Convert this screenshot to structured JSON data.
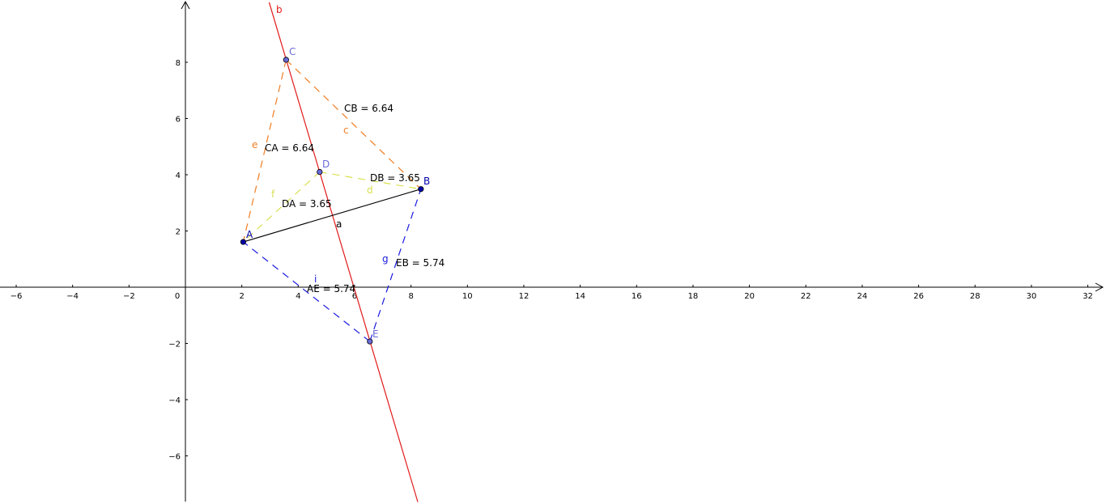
{
  "axes": {
    "x_ticks": [
      "−6",
      "−4",
      "−2",
      "0",
      "2",
      "4",
      "6",
      "8",
      "10",
      "12",
      "14",
      "16",
      "18",
      "20",
      "22",
      "24",
      "26",
      "28",
      "30",
      "32"
    ],
    "x_tick_values": [
      -6,
      -4,
      -2,
      0,
      2,
      4,
      6,
      8,
      10,
      12,
      14,
      16,
      18,
      20,
      22,
      24,
      26,
      28,
      30,
      32
    ],
    "y_ticks": [
      "8",
      "6",
      "4",
      "2",
      "−2",
      "−4",
      "−6"
    ],
    "y_tick_values": [
      8,
      6,
      4,
      2,
      -2,
      -4,
      -6
    ]
  },
  "points": [
    {
      "name": "A",
      "x": 2.05,
      "y": 1.61,
      "color": "#0000aa"
    },
    {
      "name": "B",
      "x": 8.35,
      "y": 3.49,
      "color": "#0000aa"
    },
    {
      "name": "C",
      "x": 3.57,
      "y": 8.09,
      "color": "#6a6ad8"
    },
    {
      "name": "D",
      "x": 4.76,
      "y": 4.1,
      "color": "#6a6ad8"
    },
    {
      "name": "E",
      "x": 6.54,
      "y": -1.93,
      "color": "#6a6ad8"
    }
  ],
  "segments": [
    {
      "name": "a",
      "from": "A",
      "to": "B",
      "color": "#000000",
      "dashed": false
    },
    {
      "name": "c",
      "from": "C",
      "to": "B",
      "color": "#f07c20",
      "dashed": true
    },
    {
      "name": "e",
      "from": "C",
      "to": "A",
      "color": "#f07c20",
      "dashed": true
    },
    {
      "name": "d",
      "from": "D",
      "to": "B",
      "color": "#d8e050",
      "dashed": true
    },
    {
      "name": "f",
      "from": "D",
      "to": "A",
      "color": "#d8e050",
      "dashed": true
    },
    {
      "name": "g",
      "from": "E",
      "to": "B",
      "color": "#1a1ae0",
      "dashed": true
    },
    {
      "name": "i",
      "from": "E",
      "to": "A",
      "color": "#1a1ae0",
      "dashed": true
    }
  ],
  "line_b": {
    "name": "b",
    "color": "#e11a1a",
    "x1": 2.97,
    "y1": 10.13,
    "x2": 8.24,
    "y2": -7.64
  },
  "measures": [
    {
      "text": "CB = 6.64"
    },
    {
      "text": "CA = 6.64"
    },
    {
      "text": "DB = 3.65"
    },
    {
      "text": "DA = 3.65"
    },
    {
      "text": "EB = 5.74"
    },
    {
      "text": "AE = 5.74"
    }
  ],
  "object_labels": [
    {
      "text": "b",
      "color": "#e11a1a"
    },
    {
      "text": "c",
      "color": "#f07c20"
    },
    {
      "text": "e",
      "color": "#f07c20"
    },
    {
      "text": "d",
      "color": "#d8e050"
    },
    {
      "text": "f",
      "color": "#d8e050"
    },
    {
      "text": "a",
      "color": "#000000"
    },
    {
      "text": "g",
      "color": "#1a1ae0"
    },
    {
      "text": "i",
      "color": "#1a1ae0"
    }
  ]
}
